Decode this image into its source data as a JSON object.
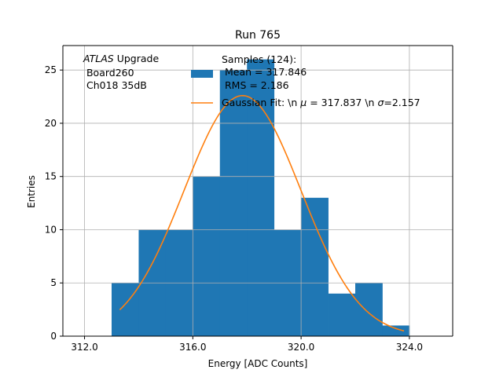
{
  "chart_data": {
    "type": "bar",
    "title": "Run 765",
    "xlabel": "Energy [ADC Counts]",
    "ylabel": "Entries",
    "xlim": [
      311.2,
      325.6
    ],
    "ylim": [
      0,
      27.3
    ],
    "x_ticks": [
      312.0,
      316.0,
      320.0,
      324.0
    ],
    "x_tick_labels": [
      "312.0",
      "316.0",
      "320.0",
      "324.0"
    ],
    "y_ticks": [
      0,
      5,
      10,
      15,
      20,
      25
    ],
    "y_tick_labels": [
      "0",
      "5",
      "10",
      "15",
      "20",
      "25"
    ],
    "grid": true,
    "annotation": {
      "line1_italic": "ATLAS",
      "line1_rest": " Upgrade",
      "line2": " Board260",
      "line3": " Ch018 35dB"
    },
    "legend": {
      "placement": "top-right",
      "samples_line1": "Samples (124):",
      "samples_line2": " Mean = 317.846",
      "samples_line3": " RMS = 2.186",
      "fit_prefix": "Gaussian Fit: \\n ",
      "fit_mu_symbol": "μ",
      "fit_mu_text": " = 317.837 \\n ",
      "fit_sigma_symbol": "σ",
      "fit_sigma_text": "=2.157"
    },
    "histogram": {
      "name": "Samples (124)",
      "color": "#1f77b4",
      "bin_edges": [
        313,
        314,
        315,
        316,
        317,
        318,
        319,
        320,
        321,
        322,
        323,
        324
      ],
      "counts": [
        5,
        10,
        10,
        15,
        25,
        26,
        10,
        13,
        4,
        5,
        1
      ]
    },
    "fit": {
      "name": "Gaussian Fit",
      "color": "#ff7f0e",
      "mu": 317.837,
      "sigma": 2.157,
      "amplitude": 22.6,
      "x_range": [
        313.3,
        323.8
      ]
    }
  }
}
